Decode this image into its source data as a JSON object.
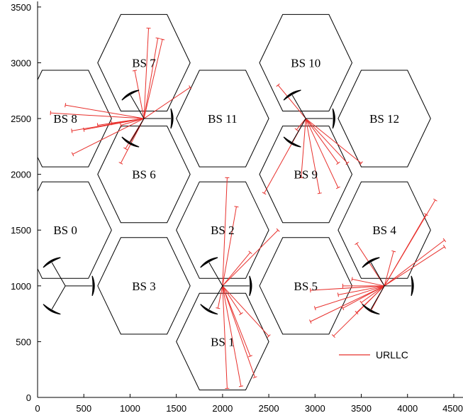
{
  "chart_data": {
    "type": "scatter",
    "title": "",
    "xlabel": "",
    "ylabel": "",
    "xlim": [
      0,
      4600
    ],
    "ylim": [
      0,
      3550
    ],
    "x_ticks": [
      0,
      500,
      1000,
      1500,
      2000,
      2500,
      3000,
      3500,
      4000,
      4500
    ],
    "y_ticks": [
      0,
      500,
      1000,
      1500,
      2000,
      2500,
      3000,
      3500
    ],
    "grid": false,
    "legend_position": "bottom-right",
    "hex_circumradius": 500,
    "cells": [
      {
        "label": "BS 0",
        "center": [
          300,
          1500
        ]
      },
      {
        "label": "BS 1",
        "center": [
          2000,
          500
        ]
      },
      {
        "label": "BS 2",
        "center": [
          2000,
          1500
        ]
      },
      {
        "label": "BS 3",
        "center": [
          1150,
          1000
        ]
      },
      {
        "label": "BS 4",
        "center": [
          3750,
          1500
        ]
      },
      {
        "label": "BS 5",
        "center": [
          2900,
          1000
        ]
      },
      {
        "label": "BS 6",
        "center": [
          1150,
          2000
        ]
      },
      {
        "label": "BS 7",
        "center": [
          1150,
          3000
        ]
      },
      {
        "label": "BS 8",
        "center": [
          300,
          2500
        ]
      },
      {
        "label": "BS 9",
        "center": [
          2900,
          2000
        ]
      },
      {
        "label": "BS 10",
        "center": [
          2900,
          3000
        ]
      },
      {
        "label": "BS 11",
        "center": [
          2000,
          2500
        ]
      },
      {
        "label": "BS 12",
        "center": [
          3750,
          2500
        ]
      }
    ],
    "sites": [
      {
        "name": "site-a",
        "position": [
          300,
          1000
        ],
        "connected_users": []
      },
      {
        "name": "site-b",
        "position": [
          1150,
          2500
        ],
        "connected_users": [
          [
            140,
            2550
          ],
          [
            380,
            2180
          ],
          [
            370,
            2390
          ],
          [
            500,
            2400
          ],
          [
            650,
            2440
          ],
          [
            800,
            2460
          ],
          [
            900,
            2440
          ],
          [
            300,
            2620
          ],
          [
            900,
            2100
          ],
          [
            1050,
            2930
          ],
          [
            1200,
            3310
          ],
          [
            1300,
            3220
          ],
          [
            1350,
            3210
          ],
          [
            1650,
            2780
          ],
          [
            950,
            2230
          ]
        ]
      },
      {
        "name": "site-c",
        "position": [
          2000,
          1000
        ],
        "connected_users": [
          [
            2050,
            1970
          ],
          [
            2150,
            1710
          ],
          [
            2600,
            1500
          ],
          [
            2300,
            1300
          ],
          [
            2050,
            80
          ],
          [
            2200,
            100
          ],
          [
            2350,
            180
          ],
          [
            2300,
            370
          ],
          [
            2500,
            550
          ],
          [
            2200,
            750
          ],
          [
            1950,
            800
          ]
        ]
      },
      {
        "name": "site-d",
        "position": [
          2900,
          2500
        ],
        "connected_users": [
          [
            2600,
            2800
          ],
          [
            2450,
            1830
          ],
          [
            2850,
            1970
          ],
          [
            3050,
            1830
          ],
          [
            3250,
            1880
          ],
          [
            3250,
            2100
          ],
          [
            3350,
            2100
          ],
          [
            3500,
            2100
          ],
          [
            2800,
            2400
          ]
        ]
      },
      {
        "name": "site-e",
        "position": [
          3750,
          1000
        ],
        "connected_users": [
          [
            2950,
            960
          ],
          [
            3000,
            800
          ],
          [
            2950,
            680
          ],
          [
            3200,
            550
          ],
          [
            3300,
            800
          ],
          [
            3450,
            760
          ],
          [
            3600,
            770
          ],
          [
            3250,
            920
          ],
          [
            3400,
            1060
          ],
          [
            3450,
            1380
          ],
          [
            3850,
            1310
          ],
          [
            4300,
            1770
          ],
          [
            4200,
            1640
          ],
          [
            4400,
            1410
          ],
          [
            4400,
            1350
          ],
          [
            3300,
            1000
          ],
          [
            3500,
            850
          ]
        ]
      }
    ],
    "legend": [
      {
        "name": "URLLC",
        "color": "#e8302c"
      }
    ],
    "colors": {
      "users": "#e8302c",
      "cells": "#000000",
      "antennas": "#000000"
    }
  }
}
